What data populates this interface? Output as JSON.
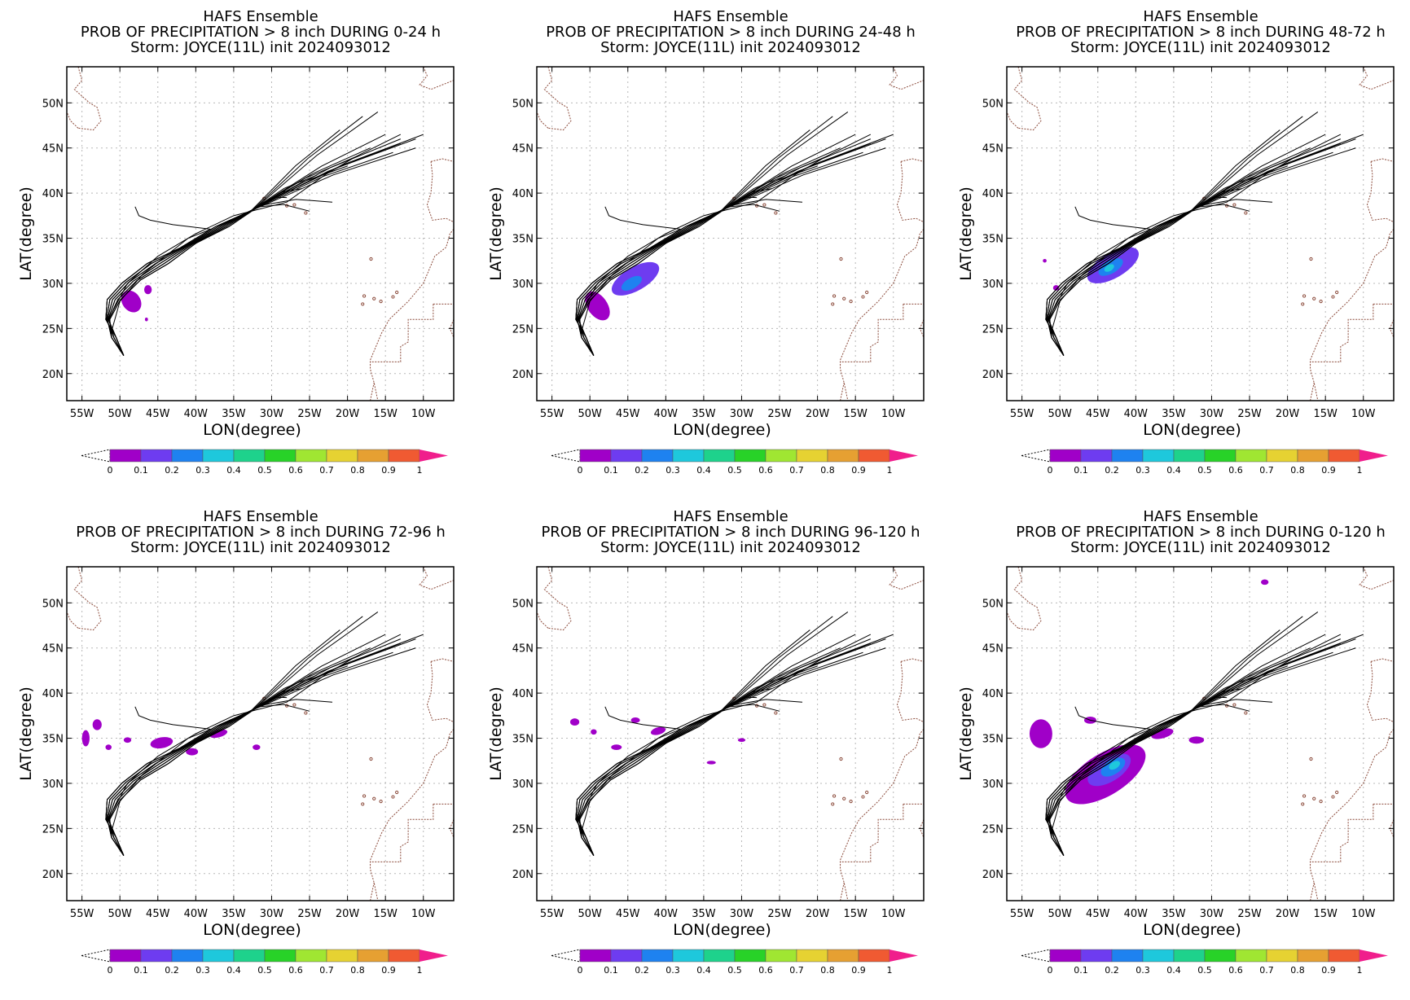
{
  "colors": {
    "frame": "#000000",
    "grid": "#b8b8b8",
    "track": "#000000",
    "coast": "#8b4a3a",
    "colorbar": [
      "#a000c8",
      "#6e3cf0",
      "#1e82f0",
      "#1ec8dc",
      "#1ed28c",
      "#28d228",
      "#a0e632",
      "#e6d232",
      "#e6a032",
      "#f05a32",
      "#f01e8c"
    ]
  },
  "chart_data": [
    {
      "type": "map",
      "title": [
        "HAFS Ensemble",
        "PROB OF PRECIPITATION > 8 inch DURING  0-24 h",
        "Storm: JOYCE(11L) init 2024093012"
      ],
      "xlabel": "LON(degree)",
      "ylabel": "LAT(degree)",
      "xlim": [
        -57,
        -6
      ],
      "ylim": [
        17,
        54
      ],
      "xticks": [
        "55W",
        "50W",
        "45W",
        "40W",
        "35W",
        "30W",
        "25W",
        "20W",
        "15W",
        "10W"
      ],
      "yticks": [
        "20N",
        "25N",
        "30N",
        "35N",
        "40N",
        "45N",
        "50N"
      ],
      "grid": true,
      "colorbar": {
        "ticks": [
          "0",
          "0.1",
          "0.2",
          "0.3",
          "0.4",
          "0.5",
          "0.6",
          "0.7",
          "0.8",
          "0.9",
          "1"
        ]
      },
      "prob_areas": [
        {
          "lon": -48.5,
          "lat": 28.0,
          "rx": 1.2,
          "ry": 1.3,
          "angle": 35,
          "prob": 0.05
        },
        {
          "lon": -46.3,
          "lat": 29.3,
          "rx": 0.5,
          "ry": 0.5,
          "angle": 0,
          "prob": 0.05
        },
        {
          "lon": -46.5,
          "lat": 26.0,
          "rx": 0.2,
          "ry": 0.2,
          "angle": 0,
          "prob": 0.05
        }
      ]
    },
    {
      "type": "map",
      "title": [
        "HAFS Ensemble",
        "PROB OF PRECIPITATION > 8 inch DURING 24-48 h",
        "Storm: JOYCE(11L) init 2024093012"
      ],
      "xlabel": "LON(degree)",
      "ylabel": "LAT(degree)",
      "xlim": [
        -57,
        -6
      ],
      "ylim": [
        17,
        54
      ],
      "xticks": [
        "55W",
        "50W",
        "45W",
        "40W",
        "35W",
        "30W",
        "25W",
        "20W",
        "15W",
        "10W"
      ],
      "yticks": [
        "20N",
        "25N",
        "30N",
        "35N",
        "40N",
        "45N",
        "50N"
      ],
      "grid": true,
      "colorbar": {
        "ticks": [
          "0",
          "0.1",
          "0.2",
          "0.3",
          "0.4",
          "0.5",
          "0.6",
          "0.7",
          "0.8",
          "0.9",
          "1"
        ]
      },
      "prob_areas": [
        {
          "lon": -44.0,
          "lat": 30.5,
          "rx": 3.5,
          "ry": 1.3,
          "angle": 30,
          "prob": 0.1
        },
        {
          "lon": -44.5,
          "lat": 30.0,
          "rx": 1.5,
          "ry": 0.6,
          "angle": 30,
          "prob": 0.2
        },
        {
          "lon": -49.0,
          "lat": 27.5,
          "rx": 1.3,
          "ry": 1.8,
          "angle": 35,
          "prob": 0.05
        }
      ]
    },
    {
      "type": "map",
      "title": [
        "HAFS Ensemble",
        "PROB OF PRECIPITATION > 8 inch DURING 48-72 h",
        "Storm: JOYCE(11L) init 2024093012"
      ],
      "xlabel": "LON(degree)",
      "ylabel": "LAT(degree)",
      "xlim": [
        -57,
        -6
      ],
      "ylim": [
        17,
        54
      ],
      "xticks": [
        "55W",
        "50W",
        "45W",
        "40W",
        "35W",
        "30W",
        "25W",
        "20W",
        "15W",
        "10W"
      ],
      "yticks": [
        "20N",
        "25N",
        "30N",
        "35N",
        "40N",
        "45N",
        "50N"
      ],
      "grid": true,
      "colorbar": {
        "ticks": [
          "0",
          "0.1",
          "0.2",
          "0.3",
          "0.4",
          "0.5",
          "0.6",
          "0.7",
          "0.8",
          "0.9",
          "1"
        ]
      },
      "prob_areas": [
        {
          "lon": -43.0,
          "lat": 32.0,
          "rx": 3.8,
          "ry": 1.4,
          "angle": 30,
          "prob": 0.1
        },
        {
          "lon": -43.3,
          "lat": 31.8,
          "rx": 1.8,
          "ry": 0.7,
          "angle": 30,
          "prob": 0.2
        },
        {
          "lon": -43.5,
          "lat": 31.7,
          "rx": 0.7,
          "ry": 0.35,
          "angle": 30,
          "prob": 0.3
        },
        {
          "lon": -50.5,
          "lat": 29.5,
          "rx": 0.4,
          "ry": 0.3,
          "angle": 0,
          "prob": 0.05
        },
        {
          "lon": -52.0,
          "lat": 32.5,
          "rx": 0.25,
          "ry": 0.2,
          "angle": 0,
          "prob": 0.05
        }
      ]
    },
    {
      "type": "map",
      "title": [
        "HAFS Ensemble",
        "PROB OF PRECIPITATION > 8 inch DURING 72-96 h",
        "Storm: JOYCE(11L) init 2024093012"
      ],
      "xlabel": "LON(degree)",
      "ylabel": "LAT(degree)",
      "xlim": [
        -57,
        -6
      ],
      "ylim": [
        17,
        54
      ],
      "xticks": [
        "55W",
        "50W",
        "45W",
        "40W",
        "35W",
        "30W",
        "25W",
        "20W",
        "15W",
        "10W"
      ],
      "yticks": [
        "20N",
        "25N",
        "30N",
        "35N",
        "40N",
        "45N",
        "50N"
      ],
      "grid": true,
      "colorbar": {
        "ticks": [
          "0",
          "0.1",
          "0.2",
          "0.3",
          "0.4",
          "0.5",
          "0.6",
          "0.7",
          "0.8",
          "0.9",
          "1"
        ]
      },
      "prob_areas": [
        {
          "lon": -53.0,
          "lat": 36.5,
          "rx": 0.6,
          "ry": 0.6,
          "angle": 0,
          "prob": 0.05
        },
        {
          "lon": -54.5,
          "lat": 35.0,
          "rx": 0.5,
          "ry": 0.9,
          "angle": 0,
          "prob": 0.05
        },
        {
          "lon": -51.5,
          "lat": 34.0,
          "rx": 0.4,
          "ry": 0.3,
          "angle": 0,
          "prob": 0.05
        },
        {
          "lon": -49.0,
          "lat": 34.8,
          "rx": 0.5,
          "ry": 0.3,
          "angle": 0,
          "prob": 0.05
        },
        {
          "lon": -44.5,
          "lat": 34.5,
          "rx": 1.5,
          "ry": 0.6,
          "angle": 10,
          "prob": 0.05
        },
        {
          "lon": -40.5,
          "lat": 33.5,
          "rx": 0.8,
          "ry": 0.4,
          "angle": 0,
          "prob": 0.05
        },
        {
          "lon": -37.0,
          "lat": 35.5,
          "rx": 1.2,
          "ry": 0.4,
          "angle": 15,
          "prob": 0.05
        },
        {
          "lon": -32.0,
          "lat": 34.0,
          "rx": 0.5,
          "ry": 0.3,
          "angle": 0,
          "prob": 0.05
        }
      ]
    },
    {
      "type": "map",
      "title": [
        "HAFS Ensemble",
        "PROB OF PRECIPITATION > 8 inch DURING 96-120 h",
        "Storm: JOYCE(11L) init 2024093012"
      ],
      "xlabel": "LON(degree)",
      "ylabel": "LAT(degree)",
      "xlim": [
        -57,
        -6
      ],
      "ylim": [
        17,
        54
      ],
      "xticks": [
        "55W",
        "50W",
        "45W",
        "40W",
        "35W",
        "30W",
        "25W",
        "20W",
        "15W",
        "10W"
      ],
      "yticks": [
        "20N",
        "25N",
        "30N",
        "35N",
        "40N",
        "45N",
        "50N"
      ],
      "grid": true,
      "colorbar": {
        "ticks": [
          "0",
          "0.1",
          "0.2",
          "0.3",
          "0.4",
          "0.5",
          "0.6",
          "0.7",
          "0.8",
          "0.9",
          "1"
        ]
      },
      "prob_areas": [
        {
          "lon": -52.0,
          "lat": 36.8,
          "rx": 0.6,
          "ry": 0.4,
          "angle": 0,
          "prob": 0.05
        },
        {
          "lon": -49.5,
          "lat": 35.7,
          "rx": 0.4,
          "ry": 0.3,
          "angle": 0,
          "prob": 0.05
        },
        {
          "lon": -46.5,
          "lat": 34.0,
          "rx": 0.7,
          "ry": 0.3,
          "angle": 0,
          "prob": 0.05
        },
        {
          "lon": -44.0,
          "lat": 37.0,
          "rx": 0.6,
          "ry": 0.3,
          "angle": 0,
          "prob": 0.05
        },
        {
          "lon": -41.0,
          "lat": 35.8,
          "rx": 1.0,
          "ry": 0.4,
          "angle": 15,
          "prob": 0.05
        },
        {
          "lon": -30.0,
          "lat": 34.8,
          "rx": 0.5,
          "ry": 0.2,
          "angle": 0,
          "prob": 0.05
        },
        {
          "lon": -34.0,
          "lat": 32.3,
          "rx": 0.6,
          "ry": 0.2,
          "angle": 0,
          "prob": 0.05
        }
      ]
    },
    {
      "type": "map",
      "title": [
        "HAFS Ensemble",
        "PROB OF PRECIPITATION > 8 inch DURING 0-120 h",
        "Storm: JOYCE(11L) init 2024093012"
      ],
      "xlabel": "LON(degree)",
      "ylabel": "LAT(degree)",
      "xlim": [
        -57,
        -6
      ],
      "ylim": [
        17,
        54
      ],
      "xticks": [
        "55W",
        "50W",
        "45W",
        "40W",
        "35W",
        "30W",
        "25W",
        "20W",
        "15W",
        "10W"
      ],
      "yticks": [
        "20N",
        "25N",
        "30N",
        "35N",
        "40N",
        "45N",
        "50N"
      ],
      "grid": true,
      "colorbar": {
        "ticks": [
          "0",
          "0.1",
          "0.2",
          "0.3",
          "0.4",
          "0.5",
          "0.6",
          "0.7",
          "0.8",
          "0.9",
          "1"
        ]
      },
      "prob_areas": [
        {
          "lon": -44.0,
          "lat": 31.0,
          "rx": 6.0,
          "ry": 2.3,
          "angle": 32,
          "prob": 0.05
        },
        {
          "lon": -43.5,
          "lat": 31.5,
          "rx": 3.2,
          "ry": 1.3,
          "angle": 32,
          "prob": 0.1
        },
        {
          "lon": -43.0,
          "lat": 31.8,
          "rx": 1.8,
          "ry": 0.8,
          "angle": 32,
          "prob": 0.2
        },
        {
          "lon": -42.8,
          "lat": 32.0,
          "rx": 0.8,
          "ry": 0.4,
          "angle": 32,
          "prob": 0.3
        },
        {
          "lon": -52.5,
          "lat": 35.5,
          "rx": 1.5,
          "ry": 1.6,
          "angle": 0,
          "prob": 0.05
        },
        {
          "lon": -46.0,
          "lat": 37.0,
          "rx": 0.8,
          "ry": 0.4,
          "angle": 0,
          "prob": 0.05
        },
        {
          "lon": -36.5,
          "lat": 35.5,
          "rx": 1.5,
          "ry": 0.5,
          "angle": 15,
          "prob": 0.05
        },
        {
          "lon": -32.0,
          "lat": 34.8,
          "rx": 1.0,
          "ry": 0.4,
          "angle": 0,
          "prob": 0.05
        },
        {
          "lon": -23.0,
          "lat": 52.3,
          "rx": 0.5,
          "ry": 0.3,
          "angle": 0,
          "prob": 0.05
        }
      ]
    }
  ]
}
